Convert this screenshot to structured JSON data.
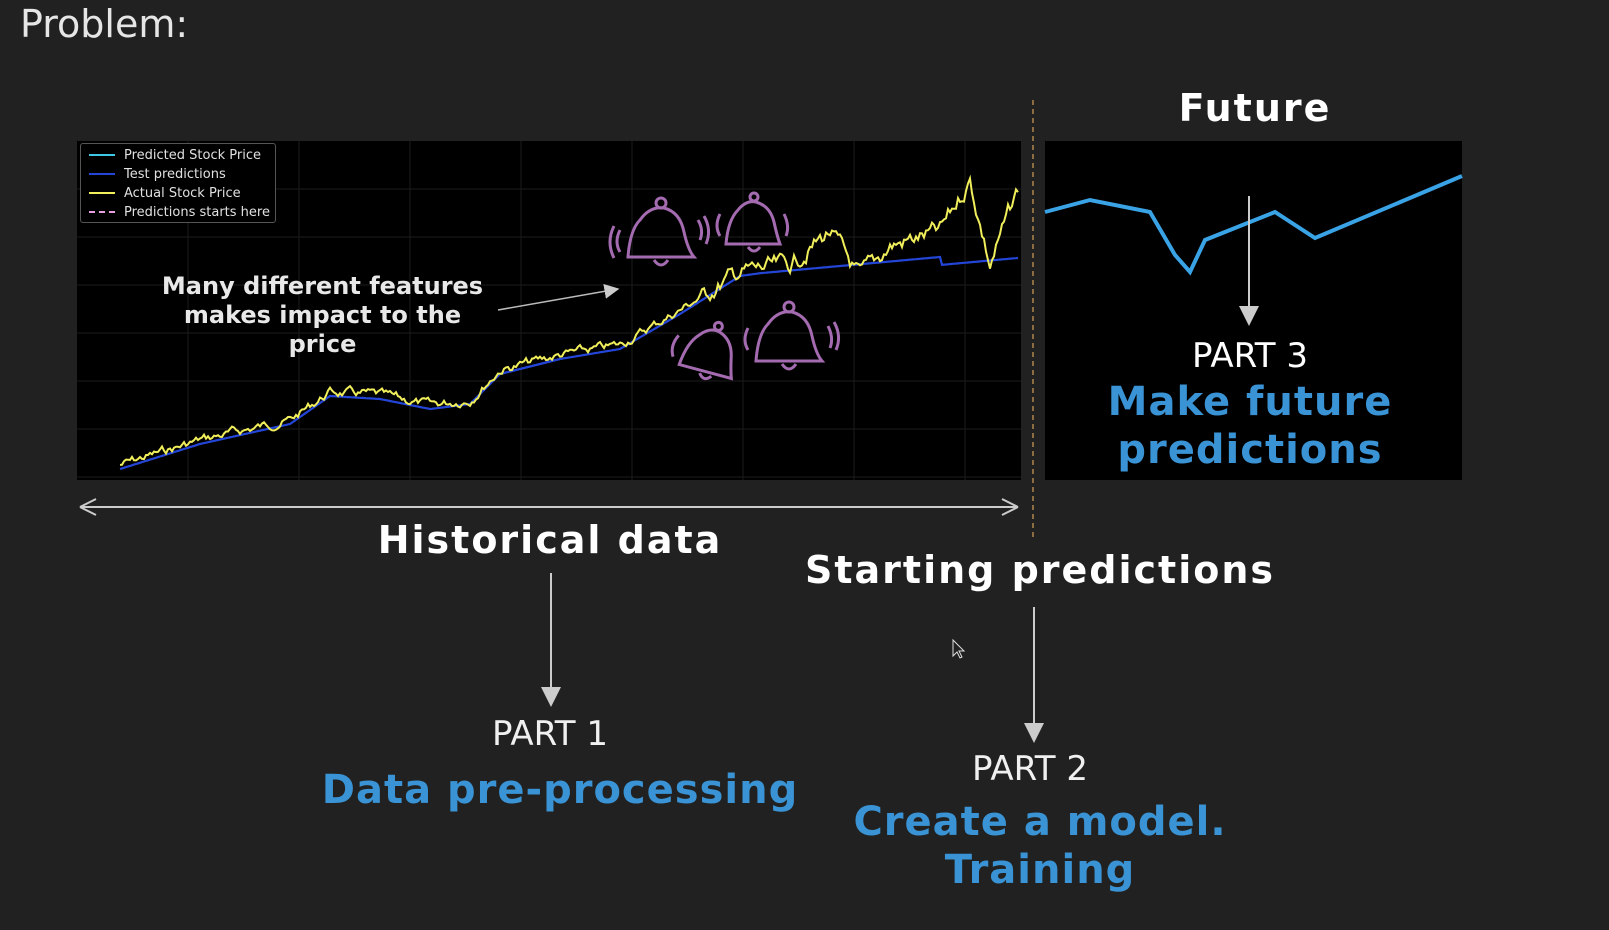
{
  "slide": {
    "title": "Problem:",
    "future_title": "Future",
    "historical_label": "Historical data",
    "starting_label": "Starting predictions",
    "features_note": "Many different features makes impact to the price"
  },
  "parts": {
    "part1": {
      "label": "PART 1",
      "desc": "Data pre-processing"
    },
    "part2": {
      "label": "PART 2",
      "desc_line1": "Create a model.",
      "desc_line2": "Training"
    },
    "part3": {
      "label": "PART 3",
      "desc_line1": "Make future",
      "desc_line2": "predictions"
    }
  },
  "legend": {
    "items": [
      {
        "label": "Predicted Stock Price",
        "color": "#3fc7e6",
        "dash": false
      },
      {
        "label": "Test predictions",
        "color": "#2446d8",
        "dash": false
      },
      {
        "label": "Actual Stock Price",
        "color": "#f0ee5a",
        "dash": false
      },
      {
        "label": "Predictions starts here",
        "color": "#e6a0e0",
        "dash": true
      }
    ]
  },
  "colors": {
    "accent_blue": "#3a93d4",
    "actual_line": "#f0ee5a",
    "test_line": "#2446d8",
    "future_line": "#3aa3e6",
    "bell": "#a46bb0",
    "divider": "#b0854a"
  },
  "icons": [
    "bell-icon",
    "bell-icon",
    "bell-icon",
    "bell-icon"
  ]
}
